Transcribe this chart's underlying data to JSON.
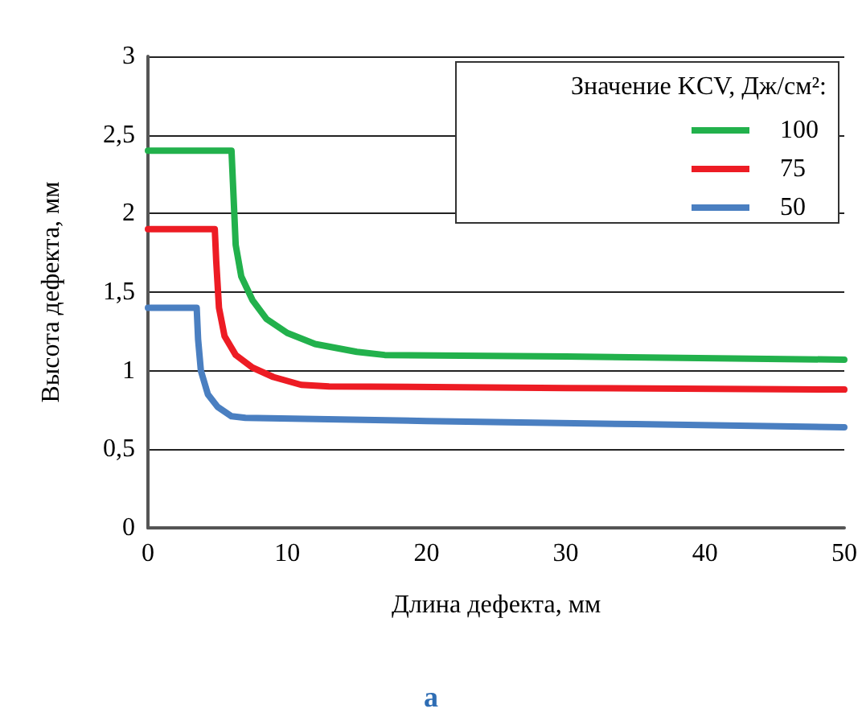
{
  "chart_data": {
    "type": "line",
    "xlabel": "Длина дефекта, мм",
    "ylabel": "Высота дефекта, мм",
    "legend_title": "Значение KCV, Дж/см²:",
    "annotations": [
      "а"
    ],
    "xlim": [
      0,
      50
    ],
    "xticks": [
      0,
      10,
      20,
      30,
      40,
      50
    ],
    "ylim": [
      0,
      3
    ],
    "yticks": [
      {
        "value": 0,
        "label": "0"
      },
      {
        "value": 0.5,
        "label": "0,5"
      },
      {
        "value": 1,
        "label": "1"
      },
      {
        "value": 1.5,
        "label": "1,5"
      },
      {
        "value": 2,
        "label": "2"
      },
      {
        "value": 2.5,
        "label": "2,5"
      },
      {
        "value": 3,
        "label": "3"
      }
    ],
    "grid": "y",
    "legend": "top right",
    "marker": "none",
    "line_style": "solid",
    "series": [
      {
        "name": "100",
        "color": "#22b14c",
        "x": [
          0,
          6,
          6.1,
          6.3,
          6.7,
          7.5,
          8.5,
          10,
          12,
          15,
          17,
          30,
          50
        ],
        "values": [
          2.4,
          2.4,
          2.2,
          1.8,
          1.6,
          1.45,
          1.33,
          1.24,
          1.17,
          1.12,
          1.1,
          1.09,
          1.07
        ]
      },
      {
        "name": "75",
        "color": "#ed1c24",
        "x": [
          0,
          4.8,
          4.9,
          5.1,
          5.5,
          6.3,
          7.5,
          9,
          11,
          13,
          30,
          50
        ],
        "values": [
          1.9,
          1.9,
          1.7,
          1.4,
          1.22,
          1.1,
          1.02,
          0.96,
          0.91,
          0.9,
          0.89,
          0.88
        ]
      },
      {
        "name": "50",
        "color": "#4a7fc1",
        "x": [
          0,
          3.5,
          3.6,
          3.8,
          4.3,
          5,
          6,
          7,
          20,
          35,
          50
        ],
        "values": [
          1.4,
          1.4,
          1.2,
          1,
          0.85,
          0.77,
          0.71,
          0.7,
          0.68,
          0.66,
          0.64
        ]
      }
    ]
  }
}
